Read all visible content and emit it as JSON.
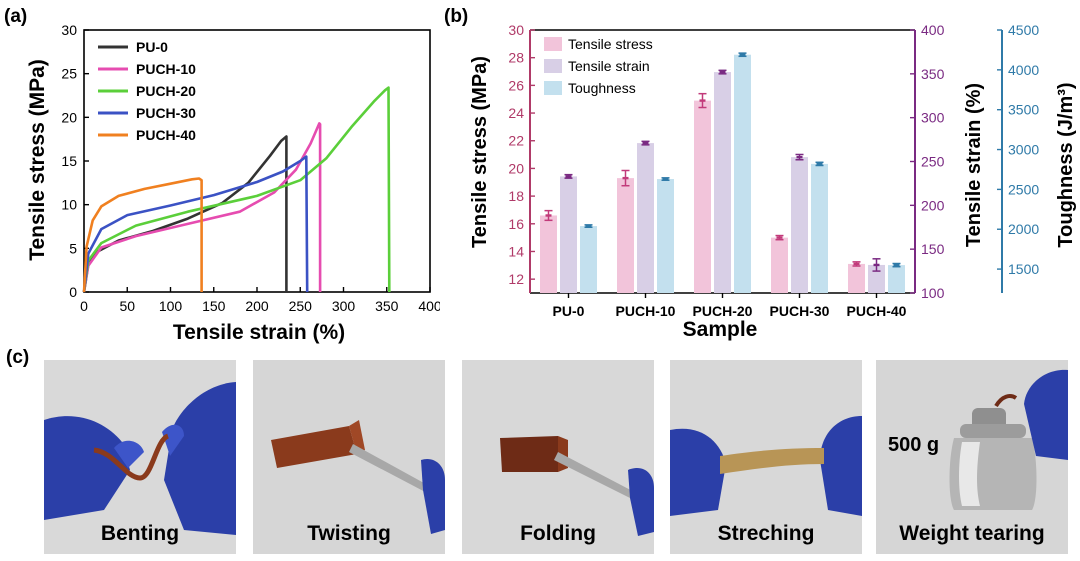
{
  "chart_data": [
    {
      "panel": "(a)",
      "type": "line",
      "xlabel": "Tensile strain (%)",
      "ylabel": "Tensile stress (MPa)",
      "xlim": [
        0,
        400
      ],
      "ylim": [
        0,
        30
      ],
      "xticks": [
        0,
        50,
        100,
        150,
        200,
        250,
        300,
        350,
        400
      ],
      "yticks": [
        0,
        5,
        10,
        15,
        20,
        25,
        30
      ],
      "legend_position": "top-left",
      "series": [
        {
          "name": "PU-0",
          "color": "#333333",
          "points": [
            [
              0,
              0
            ],
            [
              5,
              3.2
            ],
            [
              15,
              4.6
            ],
            [
              40,
              5.9
            ],
            [
              80,
              7.0
            ],
            [
              120,
              8.4
            ],
            [
              160,
              10.2
            ],
            [
              190,
              12.5
            ],
            [
              215,
              15.6
            ],
            [
              228,
              17.3
            ],
            [
              234,
              17.8
            ],
            [
              234,
              0
            ]
          ]
        },
        {
          "name": "PUCH-10",
          "color": "#e64cb0",
          "points": [
            [
              0,
              0
            ],
            [
              5,
              3.0
            ],
            [
              20,
              5.1
            ],
            [
              60,
              6.4
            ],
            [
              120,
              7.8
            ],
            [
              180,
              9.2
            ],
            [
              220,
              11.4
            ],
            [
              245,
              14.0
            ],
            [
              262,
              17.0
            ],
            [
              272,
              19.3
            ],
            [
              273,
              19.2
            ],
            [
              273,
              0
            ]
          ]
        },
        {
          "name": "PUCH-20",
          "color": "#5bcf3a",
          "points": [
            [
              0,
              0
            ],
            [
              5,
              3.6
            ],
            [
              20,
              5.6
            ],
            [
              60,
              7.6
            ],
            [
              120,
              9.2
            ],
            [
              200,
              11.0
            ],
            [
              250,
              12.8
            ],
            [
              280,
              15.3
            ],
            [
              310,
              19.0
            ],
            [
              335,
              21.8
            ],
            [
              348,
              23.1
            ],
            [
              352,
              23.4
            ],
            [
              353,
              0
            ]
          ]
        },
        {
          "name": "PUCH-30",
          "color": "#3b52c4",
          "points": [
            [
              0,
              0
            ],
            [
              5,
              4.4
            ],
            [
              20,
              7.2
            ],
            [
              50,
              8.8
            ],
            [
              100,
              9.9
            ],
            [
              150,
              11.1
            ],
            [
              200,
              12.6
            ],
            [
              230,
              13.8
            ],
            [
              250,
              15.0
            ],
            [
              257,
              15.5
            ],
            [
              258,
              0
            ]
          ]
        },
        {
          "name": "PUCH-40",
          "color": "#f08020",
          "points": [
            [
              0,
              0
            ],
            [
              3,
              5.2
            ],
            [
              10,
              8.2
            ],
            [
              20,
              9.8
            ],
            [
              40,
              11.0
            ],
            [
              70,
              11.8
            ],
            [
              100,
              12.4
            ],
            [
              125,
              12.9
            ],
            [
              133,
              13.0
            ],
            [
              136,
              12.8
            ],
            [
              136,
              0
            ]
          ]
        }
      ]
    },
    {
      "panel": "(b)",
      "type": "bar",
      "xlabel": "Sample",
      "categories": [
        "PU-0",
        "PUCH-10",
        "PUCH-20",
        "PUCH-30",
        "PUCH-40"
      ],
      "legend_position": "top-left",
      "axes": [
        {
          "id": "stress",
          "label": "Tensile stress (MPa)",
          "color": "#b03a68",
          "lim": [
            11,
            30
          ],
          "ticks": [
            12,
            14,
            16,
            18,
            20,
            22,
            24,
            26,
            28,
            30
          ]
        },
        {
          "id": "strain",
          "label": "Tensile strain (%)",
          "color": "#7a2a82",
          "lim": [
            100,
            400
          ],
          "ticks": [
            100,
            150,
            200,
            250,
            300,
            350,
            400
          ]
        },
        {
          "id": "tough",
          "label": "Toughness (J/m³)",
          "color": "#2f7aa8",
          "lim": [
            1200,
            4500
          ],
          "ticks": [
            1500,
            2000,
            2500,
            3000,
            3500,
            4000,
            4500
          ]
        }
      ],
      "series": [
        {
          "name": "Tensile stress",
          "axis": "stress",
          "color": "#f2c4da",
          "edge": "#c23a7a",
          "values": [
            16.6,
            19.3,
            24.9,
            15.0,
            13.1
          ],
          "errors": [
            0.35,
            0.55,
            0.5,
            0.15,
            0.15
          ]
        },
        {
          "name": "Tensile strain",
          "axis": "strain",
          "color": "#d8cfe6",
          "edge": "#7a2a82",
          "values": [
            233,
            271,
            352,
            255,
            132
          ],
          "errors": [
            2,
            2,
            2,
            3,
            7
          ]
        },
        {
          "name": "Toughness",
          "axis": "tough",
          "color": "#c3e0ee",
          "edge": "#2f7aa8",
          "values": [
            2040,
            2630,
            4190,
            2820,
            1550
          ],
          "errors": [
            15,
            15,
            20,
            20,
            20
          ]
        }
      ]
    }
  ],
  "panel_c": {
    "label": "(c)",
    "photos": [
      {
        "caption": "Benting"
      },
      {
        "caption": "Twisting"
      },
      {
        "caption": "Folding"
      },
      {
        "caption": "Streching"
      },
      {
        "caption": "Weight tearing",
        "weight_label": "500 g"
      }
    ]
  },
  "colors": {
    "glove": "#2b3fa8",
    "film": "#8a3a1c",
    "background_photo": "#dcdcdc"
  }
}
